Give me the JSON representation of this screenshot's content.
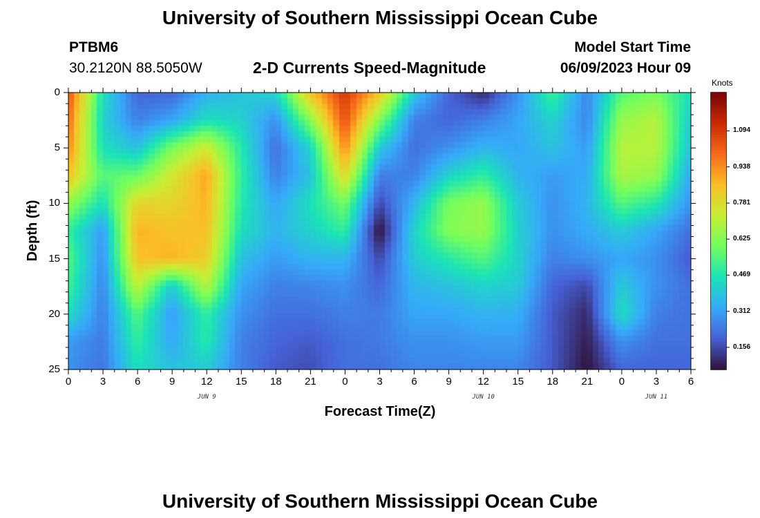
{
  "header": {
    "title_top": "University of Southern Mississippi Ocean Cube",
    "title_bottom": "University of Southern Mississippi Ocean Cube",
    "station": "PTBM6",
    "coords": "30.2120N  88.5050W",
    "product": "2-D Currents Speed-Magnitude",
    "model_label": "Model Start Time",
    "model_time": "06/09/2023 Hour 09"
  },
  "chart_data": {
    "type": "heatmap",
    "title": "2-D Currents Speed-Magnitude",
    "xlabel": "Forecast Time(Z)",
    "ylabel": "Depth (ft)",
    "x_ticks": [
      "0",
      "3",
      "6",
      "9",
      "12",
      "15",
      "18",
      "21",
      "0",
      "3",
      "6",
      "9",
      "12",
      "15",
      "18",
      "21",
      "0",
      "3",
      "6"
    ],
    "x_hours": [
      0,
      3,
      6,
      9,
      12,
      15,
      18,
      21,
      24,
      27,
      30,
      33,
      36,
      39,
      42,
      45,
      48,
      51,
      54
    ],
    "date_labels": [
      {
        "label": "JUN 9",
        "hour": 12
      },
      {
        "label": "JUN 10",
        "hour": 36
      },
      {
        "label": "JUN 11",
        "hour": 51
      }
    ],
    "y_ticks": [
      "0",
      "5",
      "10",
      "15",
      "20",
      "25"
    ],
    "y_values": [
      0,
      5,
      10,
      15,
      20,
      25
    ],
    "xlim": [
      0,
      54
    ],
    "ylim": [
      0,
      25
    ],
    "y_inverted": true,
    "colorbar": {
      "label": "Knots",
      "ticks": [
        "0.156",
        "0.312",
        "0.469",
        "0.625",
        "0.781",
        "0.938",
        "1.094"
      ],
      "tick_values": [
        0.156,
        0.312,
        0.469,
        0.625,
        0.781,
        0.938,
        1.094
      ],
      "range": [
        0.06,
        1.26
      ],
      "colors": [
        "#30123b",
        "#4662d7",
        "#36aaf9",
        "#1ae4b6",
        "#72fe5e",
        "#c7ef34",
        "#fabf26",
        "#f66b19",
        "#ca2a04",
        "#7a0403"
      ]
    },
    "grid": {
      "hours": [
        0,
        3,
        6,
        9,
        12,
        15,
        18,
        21,
        24,
        27,
        30,
        33,
        36,
        39,
        42,
        45,
        48,
        51,
        54
      ],
      "depths": [
        0,
        2.5,
        5,
        7.5,
        10,
        12.5,
        15,
        17.5,
        20,
        22.5,
        25
      ],
      "values": [
        [
          1.05,
          0.45,
          0.2,
          0.2,
          0.34,
          0.38,
          0.42,
          0.85,
          1.1,
          0.85,
          0.4,
          0.2,
          0.1,
          0.28,
          0.52,
          0.26,
          0.55,
          0.6,
          0.45
        ],
        [
          1.0,
          0.42,
          0.25,
          0.32,
          0.45,
          0.42,
          0.28,
          0.62,
          1.05,
          0.62,
          0.25,
          0.2,
          0.25,
          0.32,
          0.42,
          0.26,
          0.65,
          0.7,
          0.4
        ],
        [
          0.95,
          0.45,
          0.38,
          0.6,
          0.75,
          0.48,
          0.22,
          0.42,
          0.95,
          0.4,
          0.22,
          0.28,
          0.35,
          0.32,
          0.38,
          0.3,
          0.7,
          0.7,
          0.38
        ],
        [
          0.85,
          0.55,
          0.58,
          0.75,
          0.9,
          0.5,
          0.25,
          0.38,
          0.8,
          0.25,
          0.25,
          0.42,
          0.5,
          0.35,
          0.3,
          0.33,
          0.68,
          0.65,
          0.32
        ],
        [
          0.65,
          0.45,
          0.8,
          0.8,
          0.88,
          0.48,
          0.32,
          0.45,
          0.6,
          0.15,
          0.35,
          0.6,
          0.65,
          0.4,
          0.28,
          0.35,
          0.55,
          0.48,
          0.28
        ],
        [
          0.5,
          0.3,
          0.88,
          0.85,
          0.86,
          0.45,
          0.35,
          0.42,
          0.5,
          0.05,
          0.42,
          0.62,
          0.65,
          0.42,
          0.28,
          0.33,
          0.4,
          0.32,
          0.22
        ],
        [
          0.55,
          0.28,
          0.85,
          0.88,
          0.82,
          0.38,
          0.3,
          0.35,
          0.35,
          0.15,
          0.4,
          0.48,
          0.55,
          0.42,
          0.25,
          0.28,
          0.32,
          0.28,
          0.18
        ],
        [
          0.52,
          0.26,
          0.72,
          0.4,
          0.7,
          0.32,
          0.25,
          0.26,
          0.28,
          0.2,
          0.35,
          0.38,
          0.42,
          0.4,
          0.2,
          0.15,
          0.4,
          0.28,
          0.22
        ],
        [
          0.45,
          0.25,
          0.55,
          0.3,
          0.5,
          0.28,
          0.22,
          0.22,
          0.25,
          0.24,
          0.32,
          0.32,
          0.35,
          0.34,
          0.18,
          0.1,
          0.45,
          0.25,
          0.22
        ],
        [
          0.3,
          0.24,
          0.5,
          0.32,
          0.48,
          0.25,
          0.2,
          0.18,
          0.22,
          0.24,
          0.28,
          0.28,
          0.3,
          0.3,
          0.18,
          0.08,
          0.28,
          0.22,
          0.22
        ],
        [
          0.28,
          0.23,
          0.45,
          0.38,
          0.4,
          0.25,
          0.18,
          0.16,
          0.22,
          0.22,
          0.26,
          0.26,
          0.26,
          0.26,
          0.18,
          0.06,
          0.2,
          0.2,
          0.2
        ]
      ]
    }
  }
}
